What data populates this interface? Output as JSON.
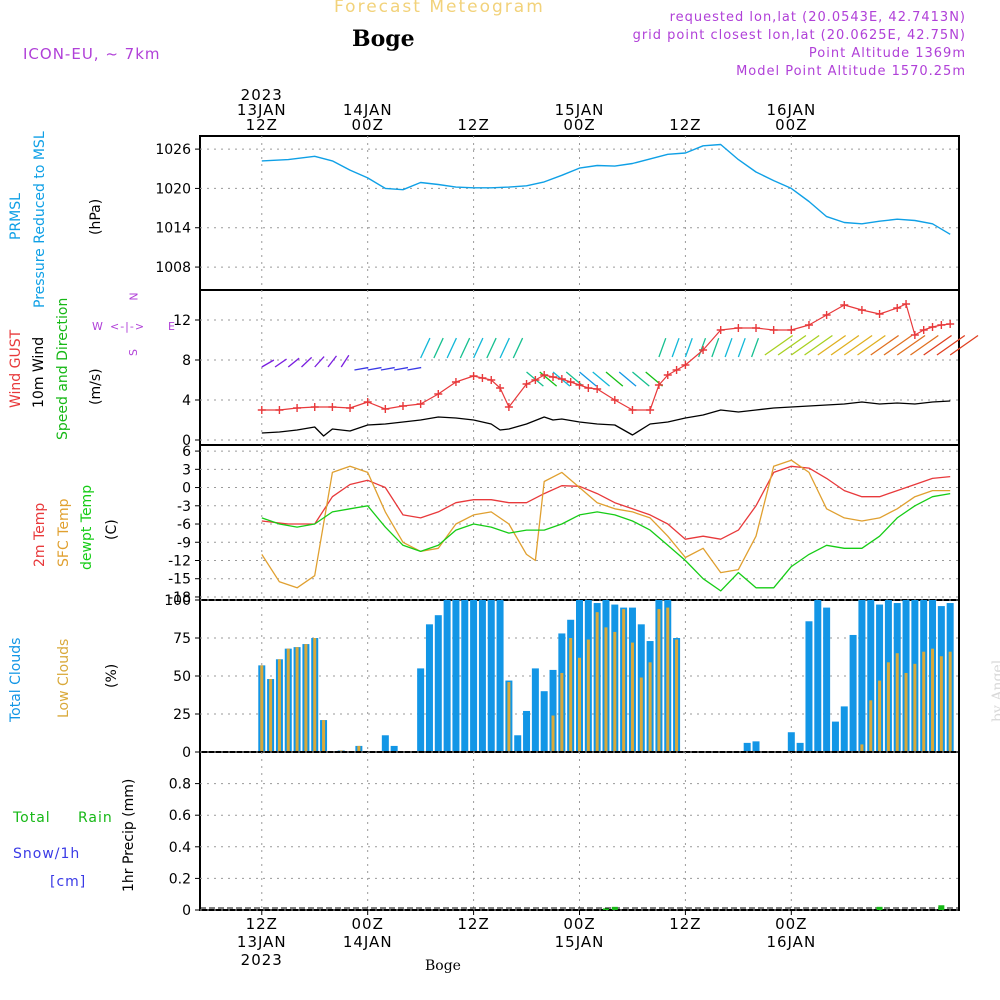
{
  "header": {
    "forecast_title": "Forecast Meteogram",
    "location": "Boge",
    "model": "ICON-EU, ~ 7km",
    "requested": "requested lon,lat (20.0543E, 42.7413N)",
    "grid_point": "grid point closest lon,lat (20.0625E, 42.75N)",
    "point_alt": "Point Altitude 1369m",
    "model_alt": "Model Point Altitude 1570.25m"
  },
  "footer": {
    "location": "Boge",
    "watermark": "by Angel"
  },
  "colors": {
    "prmsl": "#0fa0e6",
    "gust": "#e8393b",
    "wind10": "#000000",
    "dir": "#16b816",
    "t2m": "#e8393b",
    "sfc": "#e0a030",
    "dewpt": "#16cc16",
    "total": "#1296e6",
    "low": "#d9a93a",
    "rain": "#16b816",
    "snow": "#3a3ae6",
    "label": "#b040d8"
  },
  "time_axis": {
    "top": [
      {
        "lines": [
          "2023",
          "13JAN",
          "12Z"
        ]
      },
      {
        "lines": [
          "14JAN",
          "00Z"
        ]
      },
      {
        "lines": [
          "12Z"
        ]
      },
      {
        "lines": [
          "15JAN",
          "00Z"
        ]
      },
      {
        "lines": [
          "12Z"
        ]
      },
      {
        "lines": [
          "16JAN",
          "00Z"
        ]
      }
    ],
    "bottom": [
      {
        "lines": [
          "12Z",
          "13JAN",
          "2023"
        ]
      },
      {
        "lines": [
          "00Z",
          "14JAN"
        ]
      },
      {
        "lines": [
          "12Z"
        ]
      },
      {
        "lines": [
          "00Z",
          "15JAN"
        ]
      },
      {
        "lines": [
          "12Z"
        ]
      },
      {
        "lines": [
          "00Z",
          "16JAN"
        ]
      }
    ]
  },
  "panels": {
    "pressure": {
      "label1": "PRMSL",
      "label2": "Pressure Reduced to MSL",
      "unit": "(hPa)"
    },
    "wind": {
      "gust": "Wind GUST",
      "wind10": "10m Wind",
      "dir": "Speed and Direction",
      "unit": "(m/s)",
      "compass_n": "N",
      "compass_s": "S",
      "compass_w": "W",
      "compass_e": "E"
    },
    "temp": {
      "t2m": "2m Temp",
      "sfc": "SFC Temp",
      "dewpt": "dewpt Temp",
      "unit": "(C)"
    },
    "clouds": {
      "total": "Total Clouds",
      "low": "Low Clouds",
      "unit": "(%)"
    },
    "precip": {
      "rain1": "Total",
      "rain2": "Rain",
      "snow1": "Snow/1h",
      "snow2": "[cm]",
      "ylabel": "1hr Precip (mm)"
    }
  },
  "chart_data": [
    {
      "type": "line",
      "title": "PRMSL Pressure Reduced to MSL",
      "ylabel": "(hPa)",
      "ylim": [
        1004.5,
        1028
      ],
      "yticks": [
        1008,
        1014,
        1020,
        1026
      ],
      "x": [
        0,
        3,
        6,
        8,
        10,
        12,
        14,
        16,
        18,
        20,
        22,
        24,
        26,
        28,
        30,
        32,
        34,
        36,
        38,
        40,
        42,
        44,
        46,
        48,
        50,
        52,
        54,
        56,
        58,
        60,
        62,
        64,
        66,
        68,
        70,
        72,
        74,
        76,
        78
      ],
      "values": [
        1024.2,
        1024.4,
        1024.9,
        1024.2,
        1022.8,
        1021.6,
        1020.0,
        1019.8,
        1020.9,
        1020.6,
        1020.2,
        1020.1,
        1020.1,
        1020.2,
        1020.4,
        1021.0,
        1022.0,
        1023.1,
        1023.5,
        1023.4,
        1023.8,
        1024.5,
        1025.2,
        1025.4,
        1026.5,
        1026.7,
        1024.4,
        1022.5,
        1021.2,
        1020.0,
        1018.0,
        1015.7,
        1014.8,
        1014.6,
        1015.0,
        1015.3,
        1015.1,
        1014.6,
        1013.0
      ]
    },
    {
      "type": "line",
      "title": "Wind GUST / 10m Wind",
      "ylabel": "(m/s)",
      "ylim": [
        -0.5,
        15
      ],
      "yticks": [
        0,
        4,
        8,
        12
      ],
      "series": [
        {
          "name": "Wind GUST",
          "x": [
            0,
            2,
            4,
            6,
            8,
            10,
            12,
            14,
            16,
            18,
            20,
            22,
            24,
            25,
            26,
            27,
            28,
            30,
            31,
            32,
            33,
            34,
            35,
            36,
            37,
            38,
            40,
            42,
            44,
            45,
            46,
            47,
            48,
            50,
            52,
            54,
            56,
            58,
            60,
            62,
            64,
            66,
            68,
            70,
            72,
            73,
            74,
            75,
            76,
            77,
            78
          ],
          "values": [
            3.0,
            3.0,
            3.2,
            3.3,
            3.3,
            3.2,
            3.8,
            3.1,
            3.4,
            3.6,
            4.6,
            5.8,
            6.4,
            6.2,
            6.0,
            5.2,
            3.3,
            5.6,
            6.0,
            6.5,
            6.3,
            6.1,
            5.8,
            5.5,
            5.2,
            5.1,
            4.0,
            3.0,
            3.0,
            5.5,
            6.5,
            7.0,
            7.5,
            9.0,
            11.0,
            11.2,
            11.2,
            11.0,
            11.0,
            11.5,
            12.5,
            13.5,
            13.0,
            12.6,
            13.2,
            13.6,
            10.5,
            11.0,
            11.3,
            11.5,
            11.6
          ]
        },
        {
          "name": "10m Wind",
          "x": [
            0,
            2,
            4,
            6,
            7,
            8,
            10,
            12,
            14,
            16,
            18,
            20,
            22,
            24,
            26,
            27,
            28,
            30,
            32,
            33,
            34,
            36,
            38,
            40,
            42,
            44,
            46,
            48,
            50,
            52,
            54,
            56,
            58,
            60,
            62,
            64,
            66,
            68,
            70,
            72,
            74,
            76,
            78
          ],
          "values": [
            0.7,
            0.8,
            1.0,
            1.3,
            0.4,
            1.1,
            0.9,
            1.5,
            1.6,
            1.8,
            2.0,
            2.3,
            2.2,
            2.0,
            1.6,
            1.0,
            1.1,
            1.6,
            2.3,
            2.0,
            2.1,
            1.8,
            1.6,
            1.5,
            0.5,
            1.6,
            1.8,
            2.2,
            2.5,
            3.0,
            2.8,
            3.0,
            3.2,
            3.3,
            3.4,
            3.5,
            3.6,
            3.8,
            3.6,
            3.7,
            3.6,
            3.8,
            3.9
          ]
        }
      ]
    },
    {
      "type": "line",
      "title": "2m / SFC / dewpt Temp",
      "ylabel": "(C)",
      "ylim": [
        -18.5,
        7
      ],
      "yticks": [
        6,
        3,
        0,
        -3,
        -6,
        -9,
        -12,
        -15,
        -18
      ],
      "series": [
        {
          "name": "2m Temp",
          "x": [
            0,
            3,
            6,
            8,
            10,
            12,
            14,
            16,
            18,
            20,
            22,
            24,
            26,
            28,
            30,
            32,
            34,
            36,
            38,
            40,
            42,
            44,
            46,
            48,
            50,
            52,
            54,
            56,
            58,
            60,
            62,
            64,
            66,
            68,
            70,
            72,
            74,
            76,
            78
          ],
          "values": [
            -5.5,
            -6.0,
            -6.0,
            -1.5,
            0.5,
            1.2,
            0.0,
            -4.5,
            -5.0,
            -4.0,
            -2.5,
            -2.0,
            -2.0,
            -2.5,
            -2.5,
            -1.0,
            0.3,
            0.2,
            -1.0,
            -2.5,
            -3.5,
            -4.5,
            -6.0,
            -8.5,
            -8.0,
            -8.5,
            -7.0,
            -3.0,
            2.5,
            3.5,
            3.2,
            1.5,
            -0.5,
            -1.5,
            -1.5,
            -0.5,
            0.5,
            1.5,
            1.8
          ]
        },
        {
          "name": "SFC Temp",
          "x": [
            0,
            2,
            4,
            6,
            8,
            10,
            12,
            14,
            16,
            18,
            20,
            22,
            24,
            26,
            28,
            30,
            31,
            32,
            34,
            36,
            38,
            40,
            42,
            44,
            46,
            48,
            50,
            52,
            54,
            56,
            58,
            60,
            62,
            64,
            66,
            68,
            70,
            72,
            74,
            76,
            78
          ],
          "values": [
            -11.0,
            -15.5,
            -16.5,
            -14.5,
            2.5,
            3.5,
            2.5,
            -4.0,
            -9.0,
            -10.5,
            -10.0,
            -6.0,
            -4.5,
            -4.0,
            -6.0,
            -11.0,
            -12.0,
            1.0,
            2.5,
            0.0,
            -2.5,
            -3.5,
            -4.0,
            -5.0,
            -8.0,
            -11.5,
            -10.0,
            -14.0,
            -13.5,
            -8.0,
            3.5,
            4.5,
            2.5,
            -3.5,
            -5.0,
            -5.5,
            -5.0,
            -3.5,
            -1.5,
            -0.5,
            -0.5
          ]
        },
        {
          "name": "dewpt Temp",
          "x": [
            0,
            2,
            4,
            6,
            8,
            10,
            12,
            14,
            16,
            18,
            20,
            22,
            24,
            26,
            28,
            30,
            32,
            34,
            36,
            38,
            40,
            42,
            44,
            46,
            48,
            50,
            52,
            54,
            56,
            58,
            60,
            62,
            64,
            66,
            68,
            70,
            72,
            74,
            76,
            78
          ],
          "values": [
            -5.0,
            -6.0,
            -6.5,
            -6.0,
            -4.0,
            -3.5,
            -3.0,
            -6.5,
            -9.5,
            -10.5,
            -9.5,
            -7.0,
            -6.0,
            -6.5,
            -7.5,
            -7.0,
            -7.0,
            -6.0,
            -4.5,
            -4.0,
            -4.5,
            -5.5,
            -7.0,
            -9.5,
            -12.0,
            -15.0,
            -17.0,
            -14.0,
            -16.5,
            -16.5,
            -13.0,
            -11.0,
            -9.5,
            -10.0,
            -10.0,
            -8.0,
            -5.0,
            -3.0,
            -1.5,
            -1.0
          ]
        }
      ]
    },
    {
      "type": "bar",
      "title": "Total Clouds / Low Clouds",
      "ylabel": "(%)",
      "ylim": [
        0,
        100
      ],
      "yticks": [
        0,
        25,
        50,
        75,
        100
      ],
      "x": [
        0,
        1,
        2,
        3,
        4,
        5,
        6,
        7,
        8,
        9,
        10,
        11,
        12,
        13,
        14,
        15,
        16,
        17,
        18,
        19,
        20,
        21,
        22,
        23,
        24,
        25,
        26,
        27,
        28,
        29,
        30,
        31,
        32,
        33,
        34,
        35,
        36,
        37,
        38,
        39,
        40,
        41,
        42,
        43,
        44,
        45,
        46,
        47,
        48,
        49,
        50,
        51,
        52,
        53,
        54,
        55,
        56,
        57,
        58,
        59,
        60,
        61,
        62,
        63,
        64,
        65,
        66,
        67,
        68,
        69,
        70,
        71,
        72,
        73,
        74,
        75,
        76,
        77,
        78
      ],
      "series": [
        {
          "name": "Total Clouds",
          "values": [
            57,
            48,
            61,
            68,
            69,
            71,
            75,
            21,
            0,
            1,
            0,
            4,
            0,
            0,
            11,
            4,
            0,
            0,
            55,
            84,
            90,
            100,
            100,
            100,
            100,
            100,
            100,
            100,
            47,
            11,
            27,
            55,
            40,
            54,
            78,
            87,
            100,
            100,
            98,
            100,
            97,
            95,
            95,
            84,
            73,
            100,
            100,
            75,
            0,
            0,
            0,
            0,
            0,
            0,
            0,
            6,
            7,
            0,
            0,
            0,
            13,
            6,
            86,
            100,
            95,
            20,
            30,
            77,
            100,
            100,
            97,
            100,
            98,
            100,
            100,
            100,
            100,
            96,
            98
          ]
        },
        {
          "name": "Low Clouds",
          "values": [
            57,
            48,
            61,
            68,
            69,
            71,
            75,
            21,
            0,
            1,
            0,
            4,
            0,
            0,
            0,
            0,
            0,
            0,
            0,
            0,
            0,
            0,
            0,
            0,
            0,
            0,
            0,
            0,
            46,
            0,
            0,
            0,
            0,
            24,
            52,
            75,
            62,
            74,
            92,
            82,
            79,
            94,
            72,
            49,
            59,
            94,
            95,
            74,
            0,
            0,
            0,
            0,
            0,
            0,
            0,
            0,
            0,
            0,
            0,
            0,
            0,
            0,
            0,
            0,
            0,
            0,
            0,
            0,
            5,
            34,
            47,
            59,
            65,
            52,
            58,
            66,
            68,
            63,
            66
          ]
        }
      ]
    },
    {
      "type": "bar",
      "title": "1hr Precip",
      "ylabel": "1hr Precip (mm)",
      "ylim": [
        0,
        1.0
      ],
      "yticks": [
        0,
        0.2,
        0.4,
        0.6,
        0.8
      ],
      "series": [
        {
          "name": "Total Rain",
          "x": [
            39,
            40,
            70,
            77
          ],
          "values": [
            0.01,
            0.02,
            0.02,
            0.03
          ]
        },
        {
          "name": "Snow/1h",
          "x": [],
          "values": []
        }
      ]
    }
  ]
}
